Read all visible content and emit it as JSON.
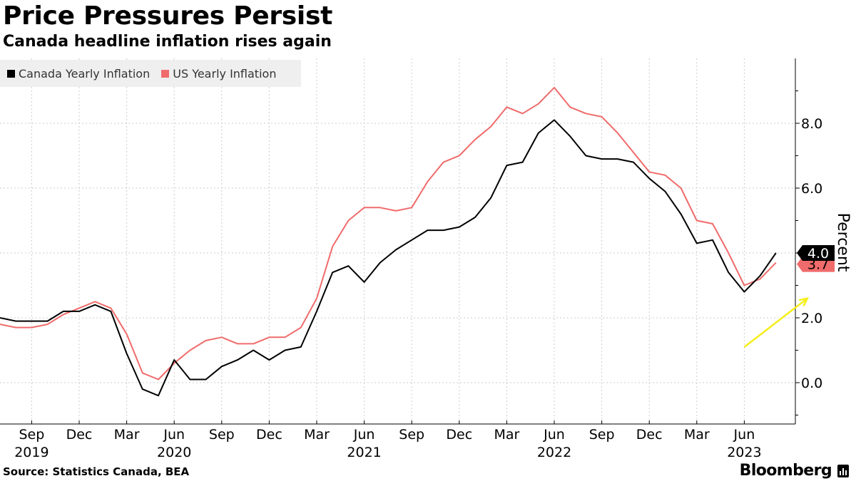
{
  "title": "Price Pressures Persist",
  "subtitle": "Canada headline inflation rises again",
  "source": "Source: Statistics Canada, BEA",
  "brand": "Bloomberg",
  "brand_icon": "bloomberg-terminal-icon",
  "colors": {
    "canada": "#000000",
    "us": "#f06b6b",
    "annotation": "#f5ee1a",
    "grid": "#cccccc"
  },
  "chart_data": {
    "type": "line",
    "title": "Price Pressures Persist",
    "subtitle": "Canada headline inflation rises again",
    "ylabel": "Percent",
    "xlabel": "",
    "ylim": [
      -1.2,
      9.9
    ],
    "yticks": [
      0,
      2,
      4,
      6,
      8
    ],
    "ytick_labels": [
      "0.0",
      "2.0",
      "4.0",
      "6.0",
      "8.0"
    ],
    "grid": true,
    "legend_position": "top-left",
    "x": [
      "2019-07",
      "2019-08",
      "2019-09",
      "2019-10",
      "2019-11",
      "2019-12",
      "2020-01",
      "2020-02",
      "2020-03",
      "2020-04",
      "2020-05",
      "2020-06",
      "2020-07",
      "2020-08",
      "2020-09",
      "2020-10",
      "2020-11",
      "2020-12",
      "2021-01",
      "2021-02",
      "2021-03",
      "2021-04",
      "2021-05",
      "2021-06",
      "2021-07",
      "2021-08",
      "2021-09",
      "2021-10",
      "2021-11",
      "2021-12",
      "2022-01",
      "2022-02",
      "2022-03",
      "2022-04",
      "2022-05",
      "2022-06",
      "2022-07",
      "2022-08",
      "2022-09",
      "2022-10",
      "2022-11",
      "2022-12",
      "2023-01",
      "2023-02",
      "2023-03",
      "2023-04",
      "2023-05",
      "2023-06",
      "2023-07",
      "2023-08"
    ],
    "x_ticks": [
      {
        "x": "2019-09",
        "month": "Sep",
        "year": "2019"
      },
      {
        "x": "2019-12",
        "month": "Dec",
        "year": ""
      },
      {
        "x": "2020-03",
        "month": "Mar",
        "year": ""
      },
      {
        "x": "2020-06",
        "month": "Jun",
        "year": "2020"
      },
      {
        "x": "2020-09",
        "month": "Sep",
        "year": ""
      },
      {
        "x": "2020-12",
        "month": "Dec",
        "year": ""
      },
      {
        "x": "2021-03",
        "month": "Mar",
        "year": ""
      },
      {
        "x": "2021-06",
        "month": "Jun",
        "year": "2021"
      },
      {
        "x": "2021-09",
        "month": "Sep",
        "year": ""
      },
      {
        "x": "2021-12",
        "month": "Dec",
        "year": ""
      },
      {
        "x": "2022-03",
        "month": "Mar",
        "year": ""
      },
      {
        "x": "2022-06",
        "month": "Jun",
        "year": "2022"
      },
      {
        "x": "2022-09",
        "month": "Sep",
        "year": ""
      },
      {
        "x": "2022-12",
        "month": "Dec",
        "year": ""
      },
      {
        "x": "2023-03",
        "month": "Mar",
        "year": ""
      },
      {
        "x": "2023-06",
        "month": "Jun",
        "year": "2023"
      }
    ],
    "series": [
      {
        "name": "Canada Yearly Inflation",
        "color": "#000000",
        "last_label": "4.0",
        "values": [
          2.0,
          1.9,
          1.9,
          1.9,
          2.2,
          2.2,
          2.4,
          2.2,
          0.9,
          -0.2,
          -0.4,
          0.7,
          0.1,
          0.1,
          0.5,
          0.7,
          1.0,
          0.7,
          1.0,
          1.1,
          2.2,
          3.4,
          3.6,
          3.1,
          3.7,
          4.1,
          4.4,
          4.7,
          4.7,
          4.8,
          5.1,
          5.7,
          6.7,
          6.8,
          7.7,
          8.1,
          7.6,
          7.0,
          6.9,
          6.9,
          6.8,
          6.3,
          5.9,
          5.2,
          4.3,
          4.4,
          3.4,
          2.8,
          3.3,
          4.0
        ]
      },
      {
        "name": "US Yearly Inflation",
        "color": "#f06b6b",
        "last_label": "3.7",
        "values": [
          1.8,
          1.7,
          1.7,
          1.8,
          2.1,
          2.3,
          2.5,
          2.3,
          1.5,
          0.3,
          0.1,
          0.6,
          1.0,
          1.3,
          1.4,
          1.2,
          1.2,
          1.4,
          1.4,
          1.7,
          2.6,
          4.2,
          5.0,
          5.4,
          5.4,
          5.3,
          5.4,
          6.2,
          6.8,
          7.0,
          7.5,
          7.9,
          8.5,
          8.3,
          8.6,
          9.1,
          8.5,
          8.3,
          8.2,
          7.7,
          7.1,
          6.5,
          6.4,
          6.0,
          5.0,
          4.9,
          4.0,
          3.0,
          3.2,
          3.7
        ]
      }
    ],
    "annotations": [
      {
        "type": "arrow",
        "color": "yellow",
        "from": [
          "2023-06",
          1.1
        ],
        "to": [
          "2023-08",
          2.6
        ]
      }
    ]
  }
}
